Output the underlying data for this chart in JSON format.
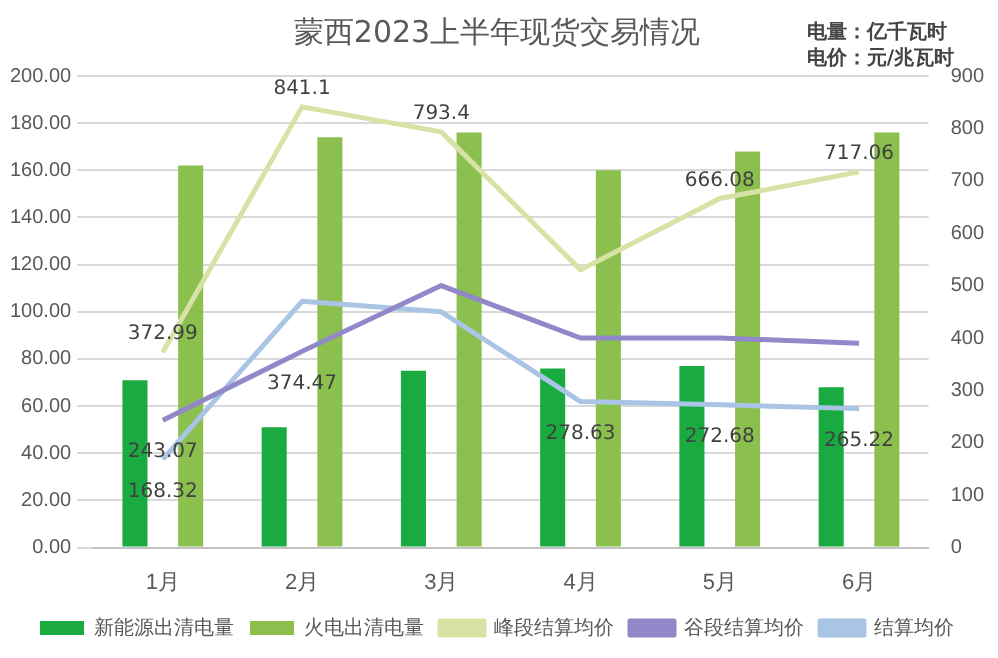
{
  "chart_data": {
    "type": "bar",
    "title": "蒙西2023上半年现货交易情况",
    "annotations": [
      "电量：亿千瓦时",
      "电价：元/兆瓦时"
    ],
    "categories": [
      "1月",
      "2月",
      "3月",
      "4月",
      "5月",
      "6月"
    ],
    "series": [
      {
        "name": "新能源出清电量",
        "type": "bar",
        "color": "#1aab40",
        "values": [
          71,
          51,
          75,
          76,
          77,
          68
        ]
      },
      {
        "name": "火电出清电量",
        "type": "bar",
        "color": "#8bc04f",
        "values": [
          162,
          174,
          176,
          160,
          168,
          176
        ]
      },
      {
        "name": "峰段结算均价",
        "type": "line",
        "axis": "y2",
        "color": "#d6e3a4",
        "values": [
          372.99,
          841.1,
          793.4,
          530,
          666.08,
          717.06
        ],
        "value_labels": [
          "372.99",
          "841.1",
          "793.4",
          null,
          "666.08",
          "717.06"
        ]
      },
      {
        "name": "谷段结算均价",
        "type": "line",
        "axis": "y2",
        "color": "#9088c8",
        "values": [
          243.07,
          374.47,
          500,
          400,
          400,
          390
        ],
        "value_labels": [
          "243.07",
          "374.47",
          null,
          null,
          null,
          null
        ]
      },
      {
        "name": "结算均价",
        "type": "line",
        "axis": "y2",
        "color": "#a9c4e4",
        "values": [
          168.32,
          470,
          450,
          278.63,
          272.68,
          265.22
        ],
        "value_labels": [
          "168.32",
          null,
          null,
          "278.63",
          "272.68",
          "265.22"
        ]
      }
    ],
    "ylim": [
      0,
      200
    ],
    "yticks": [
      {
        "value": 0,
        "label": "0.00"
      },
      {
        "value": 20,
        "label": "20.00"
      },
      {
        "value": 40,
        "label": "40.00"
      },
      {
        "value": 60,
        "label": "60.00"
      },
      {
        "value": 80,
        "label": "80.00"
      },
      {
        "value": 100,
        "label": "100.00"
      },
      {
        "value": 120,
        "label": "120.00"
      },
      {
        "value": 140,
        "label": "140.00"
      },
      {
        "value": 160,
        "label": "160.00"
      },
      {
        "value": 180,
        "label": "180.00"
      },
      {
        "value": 200,
        "label": "200.00"
      }
    ],
    "y2lim": [
      0,
      900
    ],
    "y2ticks": [
      0,
      100,
      200,
      300,
      400,
      500,
      600,
      700,
      800,
      900
    ],
    "grid": "y",
    "legend": "bottom",
    "marker": "none",
    "line_style": "solid"
  }
}
